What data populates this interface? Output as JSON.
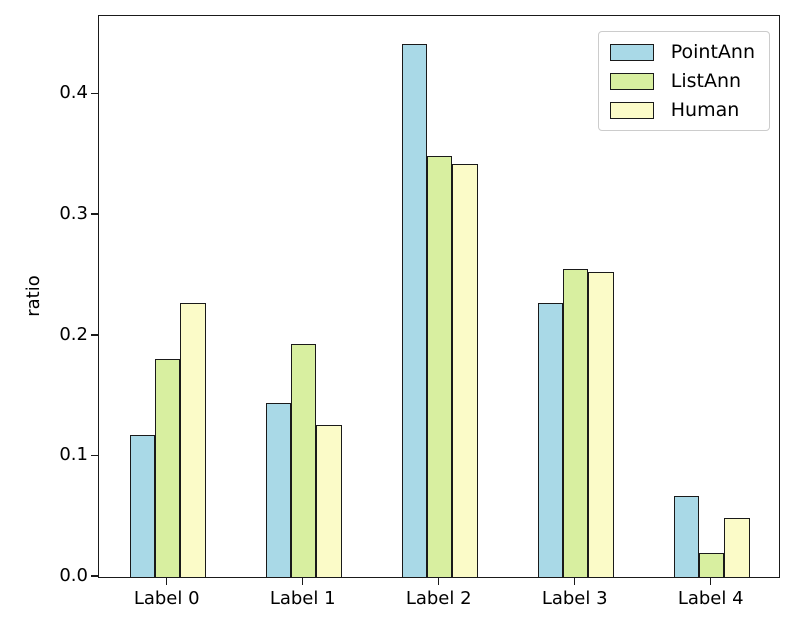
{
  "chart_data": {
    "type": "bar",
    "title": "",
    "xlabel": "",
    "ylabel": "ratio",
    "categories": [
      "Label 0",
      "Label 1",
      "Label 2",
      "Label 3",
      "Label 4"
    ],
    "series": [
      {
        "name": "PointAnn",
        "color": "#a9d9e7",
        "values": [
          0.118,
          0.144,
          0.442,
          0.227,
          0.067
        ]
      },
      {
        "name": "ListAnn",
        "color": "#d8efa0",
        "values": [
          0.181,
          0.193,
          0.349,
          0.255,
          0.02
        ]
      },
      {
        "name": "Human",
        "color": "#fbfbc8",
        "values": [
          0.227,
          0.126,
          0.342,
          0.253,
          0.049
        ]
      }
    ],
    "yticks": [
      0.0,
      0.1,
      0.2,
      0.3,
      0.4
    ],
    "ytick_labels": [
      "0.0",
      "0.1",
      "0.2",
      "0.3",
      "0.4"
    ],
    "ylim": [
      0,
      0.465
    ],
    "grid": false,
    "legend_position": "upper right",
    "bar_edge_color": "#1a1a1a",
    "axis_color": "#1a1a1a"
  }
}
